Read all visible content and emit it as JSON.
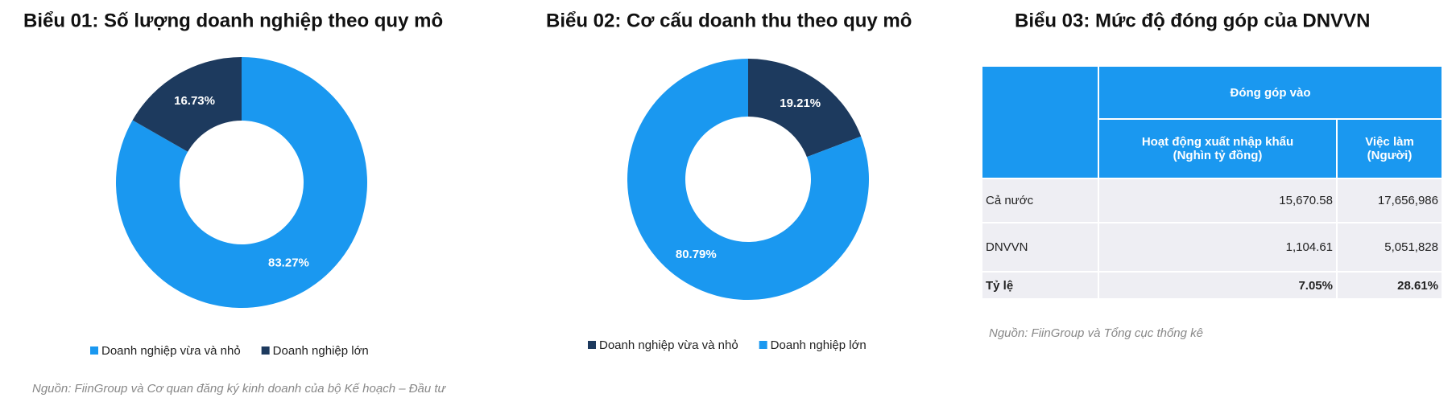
{
  "chart_data": [
    {
      "type": "donut",
      "title": "Biểu 01: Số lượng doanh nghiệp theo quy mô",
      "categories": [
        "Doanh nghiệp vừa và nhỏ",
        "Doanh nghiệp lớn"
      ],
      "values": [
        83.27,
        16.73
      ],
      "value_labels": [
        "83.27%",
        "16.73%"
      ],
      "colors": [
        "#1a98f0",
        "#1d3a5e"
      ]
    },
    {
      "type": "donut",
      "title": "Biểu 02: Cơ cấu doanh thu theo quy mô",
      "categories": [
        "Doanh nghiệp vừa và nhỏ",
        "Doanh nghiệp lớn"
      ],
      "values": [
        19.21,
        80.79
      ],
      "value_labels": [
        "19.21%",
        "80.79%"
      ],
      "colors": [
        "#1d3a5e",
        "#1a98f0"
      ]
    }
  ],
  "source": "Nguồn: FiinGroup và Cơ quan đăng ký kinh doanh của bộ Kế hoạch – Đầu tư",
  "table": {
    "title": "Biểu 03: Mức độ đóng góp của DNVVN",
    "group_header": "Đóng góp vào",
    "columns": [
      [
        "Hoạt động xuất nhập khẩu",
        "(Nghìn tỷ đồng)"
      ],
      [
        "Việc làm",
        "(Người)"
      ]
    ],
    "rows": [
      [
        "Cả nước",
        "15,670.58",
        "17,656,986"
      ],
      [
        "DNVVN",
        "1,104.61",
        "5,051,828"
      ],
      [
        "Tỷ lệ",
        "7.05%",
        "28.61%"
      ]
    ],
    "source": "Nguồn: FiinGroup và Tổng cục thống kê"
  }
}
